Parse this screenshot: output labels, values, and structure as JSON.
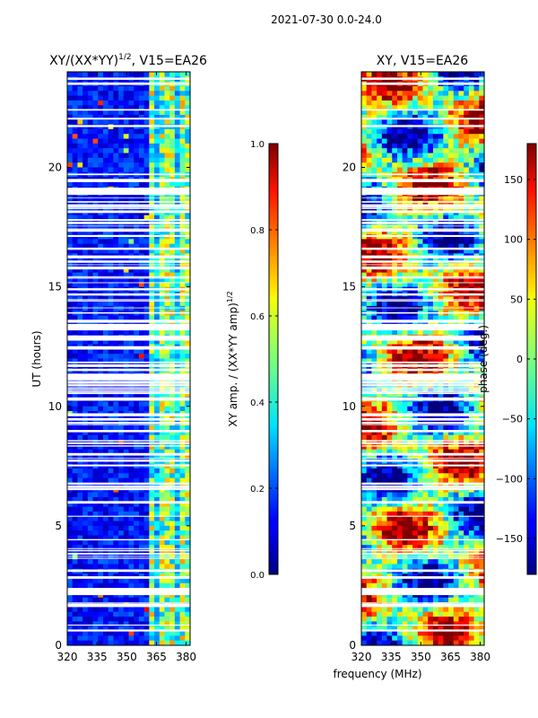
{
  "figure": {
    "suptitle": "2021-07-30 0.0-24.0",
    "xlabel": "frequency (MHz)"
  },
  "chart_data": [
    {
      "type": "heatmap",
      "title": "XY/(XX*YY)^1/2, V15=EA26",
      "title_main": "XY/(XX*YY)",
      "title_exp": "1/2",
      "title_tail": ", V15=EA26",
      "xlabel": "",
      "ylabel": "UT (hours)",
      "xlim": [
        320,
        382
      ],
      "ylim": [
        0,
        24
      ],
      "xticks": [
        320,
        335,
        350,
        365,
        380
      ],
      "yticks": [
        0,
        5,
        10,
        15,
        20
      ],
      "colorscale": "jet",
      "colorbar": {
        "label": "XY amp. / (XX*YY amp)^1/2",
        "label_main": "XY amp. / (XX*YY amp)",
        "label_exp": "1/2",
        "range": [
          0.0,
          1.0
        ],
        "ticks": [
          "0.0",
          "0.2",
          "0.4",
          "0.6",
          "0.8",
          "1.0"
        ]
      }
    },
    {
      "type": "heatmap",
      "title": "XY, V15=EA26",
      "xlabel": "frequency (MHz)",
      "ylabel": "",
      "xlim": [
        320,
        382
      ],
      "ylim": [
        0,
        24
      ],
      "xticks": [
        320,
        335,
        350,
        365,
        380
      ],
      "yticks": [
        0,
        5,
        10,
        15,
        20
      ],
      "colorscale": "jet",
      "colorbar": {
        "label": "phase (deg.)",
        "range": [
          -180,
          180
        ],
        "ticks": [
          "-150",
          "-100",
          "-50",
          "0",
          "50",
          "100",
          "150"
        ]
      }
    }
  ]
}
